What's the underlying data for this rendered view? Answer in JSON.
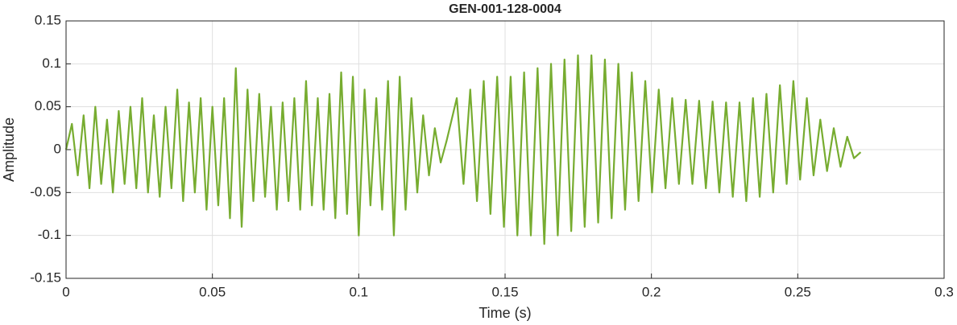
{
  "chart_data": {
    "type": "line",
    "title": "GEN-001-128-0004",
    "xlabel": "Time (s)",
    "ylabel": "Amplitude",
    "color": "#77ac30",
    "grid": true,
    "xlim": [
      0,
      0.3
    ],
    "xticks": [
      0,
      0.05,
      0.1,
      0.15,
      0.2,
      0.25,
      0.3
    ],
    "ylim": [
      -0.15,
      0.15
    ],
    "yticks": [
      -0.15,
      -0.1,
      -0.05,
      0,
      0.05,
      0.1,
      0.15
    ],
    "x": [
      0,
      0.002,
      0.004,
      0.006,
      0.008,
      0.01,
      0.012,
      0.014,
      0.016,
      0.018,
      0.02,
      0.022,
      0.024,
      0.026,
      0.028,
      0.03,
      0.032,
      0.034,
      0.036,
      0.038,
      0.04,
      0.042,
      0.044,
      0.046,
      0.048,
      0.05,
      0.052,
      0.054,
      0.056,
      0.058,
      0.06,
      0.062,
      0.064,
      0.066,
      0.068,
      0.07,
      0.072,
      0.074,
      0.076,
      0.078,
      0.08,
      0.082,
      0.084,
      0.086,
      0.088,
      0.09,
      0.092,
      0.094,
      0.096,
      0.098,
      0.1,
      0.102,
      0.104,
      0.106,
      0.108,
      0.11,
      0.112,
      0.114,
      0.116,
      0.118,
      0.12,
      0.122,
      0.124,
      0.126,
      0.128,
      0.13,
      0.1335,
      0.1358,
      0.1381,
      0.1404,
      0.1427,
      0.145,
      0.1473,
      0.1496,
      0.1519,
      0.1542,
      0.1565,
      0.1588,
      0.1611,
      0.1634,
      0.1657,
      0.168,
      0.1703,
      0.1726,
      0.1749,
      0.1772,
      0.1795,
      0.1818,
      0.1841,
      0.1864,
      0.1887,
      0.191,
      0.1933,
      0.1956,
      0.1979,
      0.2002,
      0.2025,
      0.2048,
      0.2071,
      0.2094,
      0.2117,
      0.214,
      0.2163,
      0.2186,
      0.2209,
      0.2232,
      0.2255,
      0.2278,
      0.2301,
      0.2324,
      0.2347,
      0.237,
      0.2393,
      0.2416,
      0.2439,
      0.2462,
      0.2485,
      0.2508,
      0.2531,
      0.2554,
      0.2577,
      0.26,
      0.2623,
      0.2646,
      0.2669,
      0.2692,
      0.2715
    ],
    "values": [
      0.0,
      0.03,
      -0.03,
      0.04,
      -0.045,
      0.05,
      -0.04,
      0.035,
      -0.05,
      0.045,
      -0.04,
      0.05,
      -0.045,
      0.06,
      -0.05,
      0.04,
      -0.055,
      0.05,
      -0.045,
      0.07,
      -0.06,
      0.055,
      -0.05,
      0.06,
      -0.07,
      0.05,
      -0.065,
      0.06,
      -0.08,
      0.095,
      -0.09,
      0.07,
      -0.06,
      0.065,
      -0.055,
      0.05,
      -0.07,
      0.055,
      -0.06,
      0.06,
      -0.07,
      0.08,
      -0.065,
      0.06,
      -0.07,
      0.065,
      -0.08,
      0.09,
      -0.075,
      0.085,
      -0.1,
      0.07,
      -0.065,
      0.06,
      -0.07,
      0.08,
      -0.1,
      0.085,
      -0.07,
      0.06,
      -0.05,
      0.04,
      -0.03,
      0.025,
      -0.015,
      0.01,
      0.06,
      -0.04,
      0.07,
      -0.06,
      0.08,
      -0.075,
      0.085,
      -0.09,
      0.085,
      -0.1,
      0.09,
      -0.1,
      0.095,
      -0.11,
      0.1,
      -0.1,
      0.105,
      -0.095,
      0.11,
      -0.09,
      0.11,
      -0.085,
      0.105,
      -0.08,
      0.1,
      -0.07,
      0.09,
      -0.06,
      0.08,
      -0.05,
      0.07,
      -0.045,
      0.06,
      -0.04,
      0.058,
      -0.04,
      0.057,
      -0.045,
      0.056,
      -0.05,
      0.055,
      -0.055,
      0.055,
      -0.06,
      0.06,
      -0.055,
      0.065,
      -0.05,
      0.075,
      -0.04,
      0.08,
      -0.035,
      0.06,
      -0.03,
      0.035,
      -0.025,
      0.025,
      -0.02,
      0.015,
      -0.01,
      -0.003
    ]
  }
}
